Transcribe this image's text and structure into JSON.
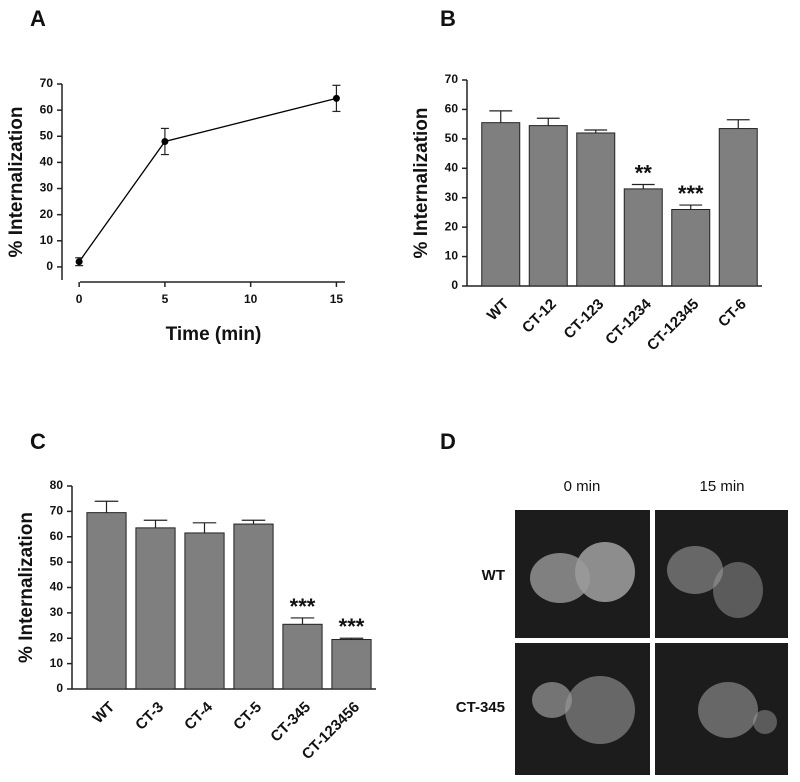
{
  "chart_data": [
    {
      "type": "line",
      "panel": "A",
      "y_label": "% Internalization",
      "x_label": "Time (min)",
      "x": [
        0,
        5,
        15
      ],
      "values": [
        2,
        48,
        64.5
      ],
      "errors": [
        1.5,
        5,
        5
      ],
      "color": "#000000",
      "xlim": [
        -1,
        15.5
      ],
      "xticks": [
        0,
        5,
        10,
        15
      ],
      "ylim": [
        -5,
        70
      ],
      "yticks": [
        0,
        10,
        20,
        30,
        40,
        50,
        60,
        70
      ]
    },
    {
      "type": "bar",
      "panel": "B",
      "y_label": "% Internalization",
      "categories": [
        "WT",
        "CT-12",
        "CT-123",
        "CT-1234",
        "CT-12345",
        "CT-6"
      ],
      "values": [
        55.5,
        54.5,
        52,
        33,
        26,
        53.5
      ],
      "errors": [
        4,
        2.5,
        1,
        1.5,
        1.5,
        3
      ],
      "color": "#7f7f7f",
      "annotations": [
        {
          "index": 3,
          "text": "**"
        },
        {
          "index": 4,
          "text": "***"
        }
      ],
      "ylim": [
        0,
        70
      ],
      "yticks": [
        0,
        10,
        20,
        30,
        40,
        50,
        60,
        70
      ]
    },
    {
      "type": "bar",
      "panel": "C",
      "y_label": "% Internalization",
      "categories": [
        "WT",
        "CT-3",
        "CT-4",
        "CT-5",
        "CT-345",
        "CT-123456"
      ],
      "values": [
        69.5,
        63.5,
        61.5,
        65,
        25.5,
        19.5
      ],
      "errors": [
        4.5,
        3,
        4,
        1.5,
        2.5,
        0.5
      ],
      "color": "#7f7f7f",
      "annotations": [
        {
          "index": 4,
          "text": "***"
        },
        {
          "index": 5,
          "text": "***"
        }
      ],
      "ylim": [
        0,
        80
      ],
      "yticks": [
        0,
        10,
        20,
        30,
        40,
        50,
        60,
        70,
        80
      ]
    }
  ],
  "panel_d": {
    "panel": "D",
    "columns": [
      "0 min",
      "15 min"
    ],
    "rows": [
      "WT",
      "CT-345"
    ]
  }
}
